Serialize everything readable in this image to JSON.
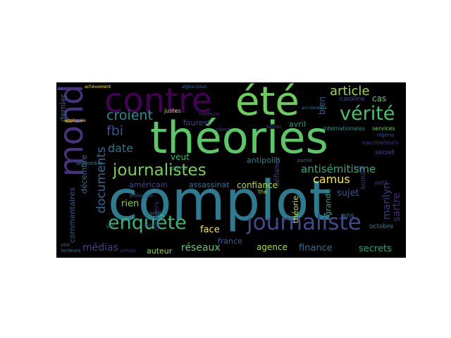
{
  "words": [
    {
      "text": "complot",
      "color": "#2c7b8f"
    },
    {
      "text": "théories",
      "color": "#5ac864"
    },
    {
      "text": "été",
      "color": "#6ccd5a"
    },
    {
      "text": "contre",
      "color": "#440154"
    },
    {
      "text": "monde",
      "color": "#46327e"
    },
    {
      "text": "journaliste",
      "color": "#3e4c8a"
    },
    {
      "text": "journalistes",
      "color": "#7ad151"
    },
    {
      "text": "enquête",
      "color": "#35b779"
    },
    {
      "text": "vérité",
      "color": "#4ac16d"
    },
    {
      "text": "croient",
      "color": "#21908d"
    },
    {
      "text": "article",
      "color": "#9fda3a"
    },
    {
      "text": "fbi",
      "color": "#3b528b"
    },
    {
      "text": "antisémitisme",
      "color": "#26ad81"
    },
    {
      "text": "camus",
      "color": "#fde725"
    },
    {
      "text": "documents",
      "color": "#31688e"
    },
    {
      "text": "date",
      "color": "#2a788e"
    },
    {
      "text": "médias",
      "color": "#414487"
    },
    {
      "text": "réseaux",
      "color": "#5ec962"
    },
    {
      "text": "finance",
      "color": "#2c728e"
    },
    {
      "text": "secrets",
      "color": "#21a585"
    },
    {
      "text": "agence",
      "color": "#addc30"
    },
    {
      "text": "sujet",
      "color": "#38588c"
    },
    {
      "text": "rien",
      "color": "#85d54a"
    },
    {
      "text": "face",
      "color": "#fde725"
    },
    {
      "text": "veut",
      "color": "#2fb47c"
    },
    {
      "text": "fourest",
      "color": "#3f4788"
    },
    {
      "text": "confiance",
      "color": "#b5de2b"
    },
    {
      "text": "antipolio",
      "color": "#24868e"
    },
    {
      "text": "avril",
      "color": "#1f9a8a"
    },
    {
      "text": "américain",
      "color": "#3e4a89"
    },
    {
      "text": "assassinat",
      "color": "#2d708e"
    },
    {
      "text": "auteur",
      "color": "#9bd93c"
    },
    {
      "text": "france",
      "color": "#355f8d"
    },
    {
      "text": "marilyn",
      "color": "#453882"
    },
    {
      "text": "sartre",
      "color": "#482878"
    },
    {
      "text": "dernier",
      "color": "#306a8e"
    },
    {
      "text": "commentaires",
      "color": "#39568c"
    },
    {
      "text": "décembre",
      "color": "#2a768e"
    },
    {
      "text": "derniers",
      "color": "#472d7b"
    },
    {
      "text": "défiance",
      "color": "#3f4889"
    },
    {
      "text": "théorie",
      "color": "#d8e219"
    },
    {
      "text": "grande",
      "color": "#1fa187"
    },
    {
      "text": "bien",
      "color": "#32648e"
    },
    {
      "text": "cas",
      "color": "#5ec962"
    },
    {
      "text": "caroline",
      "color": "#3e4989"
    },
    {
      "text": "ans",
      "color": "#31688e"
    },
    {
      "text": "vis",
      "color": "#2e6e8e"
    },
    {
      "text": "octobre",
      "color": "#26828e"
    },
    {
      "text": "secret",
      "color": "#3d4d8a"
    },
    {
      "text": "the",
      "color": "#9fda3a"
    },
    {
      "text": "petit",
      "color": "#443983"
    },
    {
      "text": "pierre",
      "color": "#25848e"
    },
    {
      "text": "justes",
      "color": "#c2df23"
    },
    {
      "text": "vaccinateurs",
      "color": "#46307e"
    },
    {
      "text": "services",
      "color": "#6ece58"
    },
    {
      "text": "internationales",
      "color": "#21918c"
    },
    {
      "text": "septembre",
      "color": "#277f8e"
    },
    {
      "text": "lecteurs",
      "color": "#2a788e"
    },
    {
      "text": "voir",
      "color": "#2c728e"
    },
    {
      "text": "jamais",
      "color": "#472d7b"
    },
    {
      "text": "partie",
      "color": "#31688e"
    },
    {
      "text": "savoir",
      "color": "#3e4a89"
    },
    {
      "text": "provoqué",
      "color": "#355f8d"
    },
    {
      "text": "médecin",
      "color": "#472c7a"
    },
    {
      "text": "albert",
      "color": "#443983"
    },
    {
      "text": "produit",
      "color": "#2a768e"
    },
    {
      "text": "nigeria",
      "color": "#3a538b"
    },
    {
      "text": "appliquée",
      "color": "#fde725"
    },
    {
      "text": "achèvement",
      "color": "#fde725"
    },
    {
      "text": "afghanistan",
      "color": "#2f6c8e"
    },
    {
      "text": "pays",
      "color": "#433e85"
    },
    {
      "text": "bombe",
      "color": "#46327e"
    },
    {
      "text": "trop",
      "color": "#38588c"
    },
    {
      "text": "accidentelle",
      "color": "#2c738e"
    }
  ]
}
